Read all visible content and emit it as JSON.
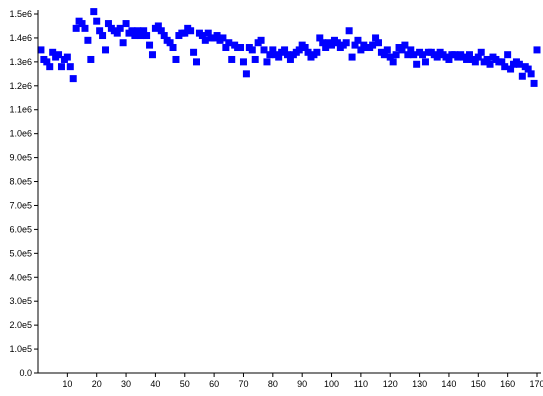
{
  "chart_data": {
    "type": "scatter",
    "title": "",
    "xlabel": "",
    "ylabel": "",
    "xlim": [
      0,
      170
    ],
    "ylim": [
      0,
      1500000
    ],
    "grid": false,
    "marker_color": "#0000ff",
    "axis_color": "#000000",
    "x_ticks": [
      {
        "value": 10,
        "label": "10"
      },
      {
        "value": 20,
        "label": "20"
      },
      {
        "value": 30,
        "label": "30"
      },
      {
        "value": 40,
        "label": "40"
      },
      {
        "value": 50,
        "label": "50"
      },
      {
        "value": 60,
        "label": "60"
      },
      {
        "value": 70,
        "label": "70"
      },
      {
        "value": 80,
        "label": "80"
      },
      {
        "value": 90,
        "label": "90"
      },
      {
        "value": 100,
        "label": "100"
      },
      {
        "value": 110,
        "label": "110"
      },
      {
        "value": 120,
        "label": "120"
      },
      {
        "value": 130,
        "label": "130"
      },
      {
        "value": 140,
        "label": "140"
      },
      {
        "value": 150,
        "label": "150"
      },
      {
        "value": 160,
        "label": "160"
      },
      {
        "value": 170,
        "label": "170"
      }
    ],
    "y_ticks": [
      {
        "value": 0,
        "label": "0.0"
      },
      {
        "value": 100000,
        "label": "1.0e5"
      },
      {
        "value": 200000,
        "label": "2.0e5"
      },
      {
        "value": 300000,
        "label": "3.0e5"
      },
      {
        "value": 400000,
        "label": "4.0e5"
      },
      {
        "value": 500000,
        "label": "5.0e5"
      },
      {
        "value": 600000,
        "label": "6.0e5"
      },
      {
        "value": 700000,
        "label": "7.0e5"
      },
      {
        "value": 800000,
        "label": "8.0e5"
      },
      {
        "value": 900000,
        "label": "9.0e5"
      },
      {
        "value": 1000000,
        "label": "1.0e6"
      },
      {
        "value": 1100000,
        "label": "1.1e6"
      },
      {
        "value": 1200000,
        "label": "1.2e6"
      },
      {
        "value": 1300000,
        "label": "1.3e6"
      },
      {
        "value": 1400000,
        "label": "1.4e6"
      },
      {
        "value": 1500000,
        "label": "1.5e6"
      }
    ],
    "series": [
      {
        "x": [
          1,
          2,
          3,
          4,
          5,
          6,
          7,
          8,
          9,
          10,
          11,
          12,
          13,
          14,
          15,
          16,
          17,
          18,
          19,
          20,
          21,
          22,
          23,
          24,
          25,
          26,
          27,
          28,
          29,
          30,
          31,
          32,
          33,
          34,
          35,
          36,
          37,
          38,
          39,
          40,
          41,
          42,
          43,
          44,
          45,
          46,
          47,
          48,
          49,
          50,
          51,
          52,
          53,
          54,
          55,
          56,
          57,
          58,
          59,
          60,
          61,
          62,
          63,
          64,
          65,
          66,
          67,
          68,
          69,
          70,
          71,
          72,
          73,
          74,
          75,
          76,
          77,
          78,
          79,
          80,
          81,
          82,
          83,
          84,
          85,
          86,
          87,
          88,
          89,
          90,
          91,
          92,
          93,
          94,
          95,
          96,
          97,
          98,
          99,
          100,
          101,
          102,
          103,
          104,
          105,
          106,
          107,
          108,
          109,
          110,
          111,
          112,
          113,
          114,
          115,
          116,
          117,
          118,
          119,
          120,
          121,
          122,
          123,
          124,
          125,
          126,
          127,
          128,
          129,
          130,
          131,
          132,
          133,
          134,
          135,
          136,
          137,
          138,
          139,
          140,
          141,
          142,
          143,
          144,
          145,
          146,
          147,
          148,
          149,
          150,
          151,
          152,
          153,
          154,
          155,
          156,
          157,
          158,
          159,
          160,
          161,
          162,
          163,
          164,
          165,
          166,
          167,
          168,
          169,
          170
        ],
        "y": [
          1350000,
          1310000,
          1300000,
          1280000,
          1340000,
          1320000,
          1330000,
          1280000,
          1310000,
          1320000,
          1280000,
          1230000,
          1440000,
          1470000,
          1460000,
          1440000,
          1390000,
          1310000,
          1510000,
          1470000,
          1430000,
          1410000,
          1350000,
          1460000,
          1440000,
          1430000,
          1420000,
          1440000,
          1380000,
          1460000,
          1420000,
          1430000,
          1410000,
          1430000,
          1410000,
          1430000,
          1410000,
          1370000,
          1330000,
          1440000,
          1450000,
          1430000,
          1410000,
          1390000,
          1380000,
          1360000,
          1310000,
          1410000,
          1420000,
          1420000,
          1440000,
          1430000,
          1340000,
          1300000,
          1420000,
          1410000,
          1390000,
          1420000,
          1400000,
          1400000,
          1410000,
          1390000,
          1400000,
          1360000,
          1380000,
          1310000,
          1370000,
          1360000,
          1360000,
          1300000,
          1250000,
          1360000,
          1350000,
          1310000,
          1380000,
          1390000,
          1350000,
          1300000,
          1330000,
          1350000,
          1330000,
          1320000,
          1340000,
          1350000,
          1330000,
          1310000,
          1330000,
          1340000,
          1350000,
          1370000,
          1360000,
          1340000,
          1320000,
          1330000,
          1340000,
          1400000,
          1380000,
          1360000,
          1380000,
          1370000,
          1390000,
          1380000,
          1360000,
          1370000,
          1380000,
          1430000,
          1320000,
          1370000,
          1390000,
          1350000,
          1370000,
          1360000,
          1360000,
          1370000,
          1400000,
          1380000,
          1340000,
          1330000,
          1350000,
          1320000,
          1300000,
          1330000,
          1360000,
          1350000,
          1370000,
          1330000,
          1350000,
          1330000,
          1290000,
          1340000,
          1330000,
          1300000,
          1340000,
          1340000,
          1330000,
          1320000,
          1340000,
          1330000,
          1320000,
          1310000,
          1330000,
          1330000,
          1320000,
          1330000,
          1320000,
          1310000,
          1330000,
          1310000,
          1300000,
          1320000,
          1340000,
          1300000,
          1310000,
          1290000,
          1320000,
          1310000,
          1300000,
          1300000,
          1280000,
          1330000,
          1270000,
          1290000,
          1300000,
          1290000,
          1240000,
          1280000,
          1270000,
          1250000,
          1210000,
          1350000
        ]
      }
    ]
  }
}
